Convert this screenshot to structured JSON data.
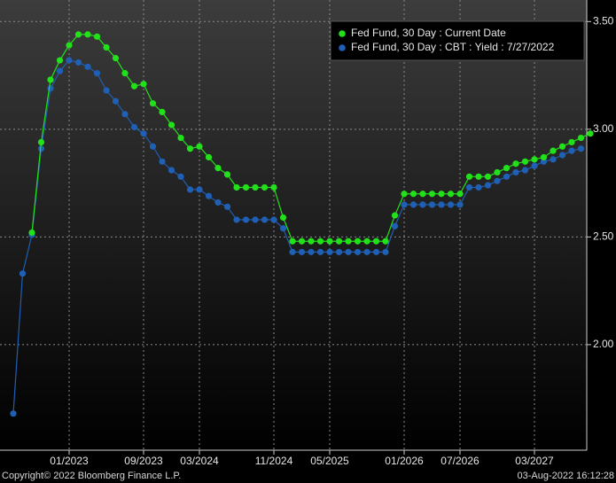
{
  "chart_data": {
    "type": "line",
    "categories": [
      null,
      null,
      null,
      null,
      null,
      null,
      "01/2023",
      null,
      null,
      null,
      null,
      null,
      null,
      null,
      "09/2023",
      null,
      null,
      null,
      null,
      null,
      "03/2024",
      null,
      null,
      null,
      null,
      null,
      null,
      null,
      "11/2024",
      null,
      null,
      null,
      null,
      null,
      "05/2025",
      null,
      null,
      null,
      null,
      null,
      null,
      null,
      "01/2026",
      null,
      null,
      null,
      null,
      null,
      "07/2026",
      null,
      null,
      null,
      null,
      null,
      null,
      null,
      "03/2027",
      null,
      null,
      null,
      null,
      null,
      null
    ],
    "series": [
      {
        "name": "Fed Fund, 30 Day : Current Date",
        "color": "#22e01a",
        "values": [
          null,
          null,
          2.52,
          2.94,
          3.23,
          3.32,
          3.39,
          3.44,
          3.44,
          3.43,
          3.38,
          3.33,
          3.26,
          3.2,
          3.21,
          3.12,
          3.08,
          3.02,
          2.96,
          2.91,
          2.92,
          2.87,
          2.82,
          2.79,
          2.73,
          2.73,
          2.73,
          2.73,
          2.73,
          2.59,
          2.48,
          2.48,
          2.48,
          2.48,
          2.48,
          2.48,
          2.48,
          2.48,
          2.48,
          2.48,
          2.48,
          2.6,
          2.7,
          2.7,
          2.7,
          2.7,
          2.7,
          2.7,
          2.7,
          2.78,
          2.78,
          2.78,
          2.8,
          2.82,
          2.84,
          2.85,
          2.86,
          2.87,
          2.9,
          2.92,
          2.94,
          2.96,
          2.98
        ]
      },
      {
        "name": "Fed Fund, 30 Day : CBT : Yield : 7/27/2022",
        "color": "#1f5fb4",
        "values": [
          1.68,
          2.33,
          2.51,
          2.91,
          3.19,
          3.27,
          3.32,
          3.31,
          3.29,
          3.26,
          3.18,
          3.13,
          3.07,
          3.01,
          2.98,
          2.92,
          2.85,
          2.81,
          2.78,
          2.72,
          2.72,
          2.69,
          2.66,
          2.64,
          2.58,
          2.58,
          2.58,
          2.58,
          2.58,
          2.54,
          2.43,
          2.43,
          2.43,
          2.43,
          2.43,
          2.43,
          2.43,
          2.43,
          2.43,
          2.43,
          2.43,
          2.55,
          2.65,
          2.65,
          2.65,
          2.65,
          2.65,
          2.65,
          2.65,
          2.73,
          2.73,
          2.74,
          2.76,
          2.78,
          2.8,
          2.81,
          2.83,
          2.85,
          2.86,
          2.88,
          2.9,
          2.91,
          null
        ]
      }
    ],
    "ylim": [
      1.51,
      3.6
    ],
    "yticks": [
      {
        "value": 2.0,
        "label": "2.00"
      },
      {
        "value": 2.5,
        "label": "2.50"
      },
      {
        "value": 3.0,
        "label": "3.00"
      },
      {
        "value": 3.5,
        "label": "3.50"
      }
    ],
    "grid": true,
    "legend": "top-right",
    "copyright": "Copyright© 2022 Bloomberg Finance L.P.",
    "timestamp": "03-Aug-2022 16:12:28"
  }
}
